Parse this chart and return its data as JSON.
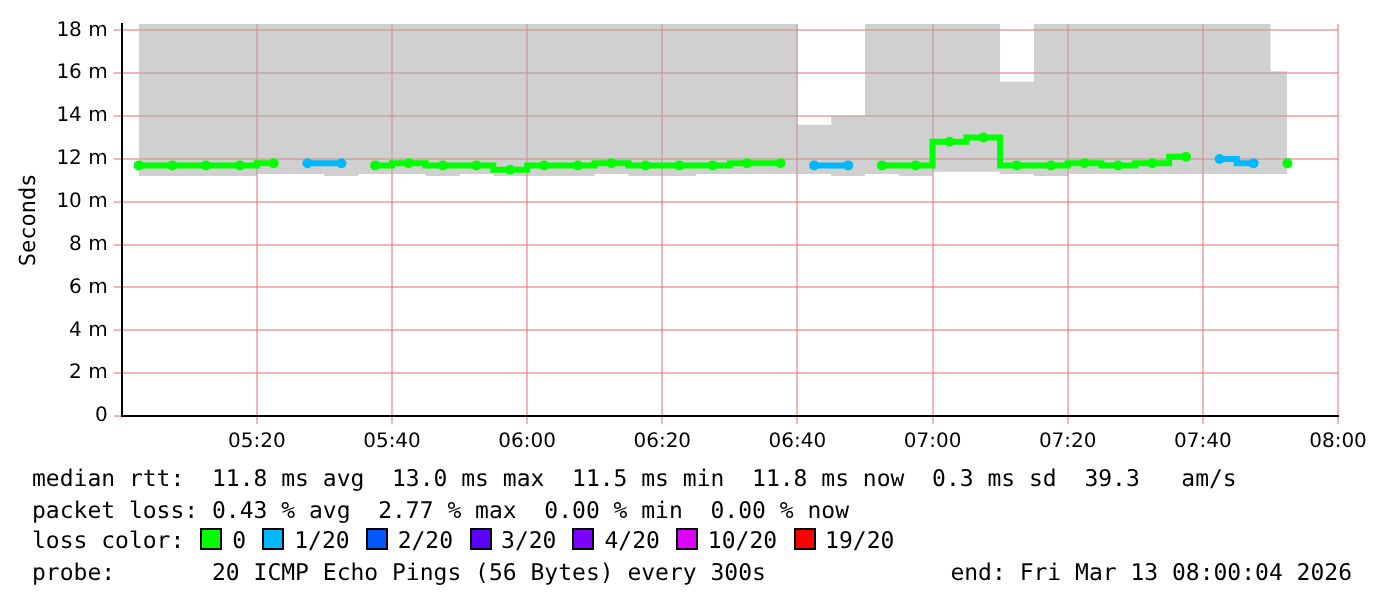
{
  "chart_data": {
    "type": "step",
    "ylabel": "Seconds",
    "legend_title": "loss color:",
    "legend": "bottom",
    "grid": true,
    "x": [
      5.042,
      5.125,
      5.208,
      5.292,
      5.375,
      5.458,
      5.542,
      5.625,
      5.708,
      5.792,
      5.875,
      5.958,
      6.042,
      6.125,
      6.208,
      6.292,
      6.375,
      6.458,
      6.542,
      6.625,
      6.708,
      6.792,
      6.875,
      6.958,
      7.042,
      7.125,
      7.208,
      7.292,
      7.375,
      7.458,
      7.542,
      7.625,
      7.708,
      7.792,
      7.875
    ],
    "xlim": [
      5,
      8
    ],
    "xticks": [
      {
        "value": 5.3333,
        "label": "05:20"
      },
      {
        "value": 5.6667,
        "label": "05:40"
      },
      {
        "value": 6,
        "label": "06:00"
      },
      {
        "value": 6.3333,
        "label": "06:20"
      },
      {
        "value": 6.6667,
        "label": "06:40"
      },
      {
        "value": 7,
        "label": "07:00"
      },
      {
        "value": 7.3333,
        "label": "07:20"
      },
      {
        "value": 7.6667,
        "label": "07:40"
      },
      {
        "value": 8,
        "label": "08:00"
      }
    ],
    "ylim": [
      0,
      18.3
    ],
    "yticks": [
      0,
      {
        "value": 2,
        "label": "2 m"
      },
      {
        "value": 4,
        "label": "4 m"
      },
      {
        "value": 6,
        "label": "6 m"
      },
      {
        "value": 8,
        "label": "8 m"
      },
      {
        "value": 10,
        "label": "10 m"
      },
      {
        "value": 12,
        "label": "12 m"
      },
      {
        "value": 14,
        "label": "14 m"
      },
      {
        "value": 16,
        "label": "16 m"
      },
      {
        "value": 18,
        "label": "18 m"
      }
    ],
    "series": [
      {
        "name": "0",
        "color": "#00ff00",
        "marker": "circle",
        "values": [
          11.7,
          11.7,
          11.7,
          11.7,
          11.8,
          null,
          null,
          11.7,
          11.8,
          11.7,
          11.7,
          11.5,
          11.7,
          11.7,
          11.8,
          11.7,
          11.7,
          11.7,
          11.8,
          11.8,
          null,
          null,
          11.7,
          11.7,
          12.8,
          13.0,
          11.7,
          11.7,
          11.8,
          11.7,
          11.8,
          12.1,
          null,
          null,
          11.8
        ],
        "lower": [
          11.2,
          11.2,
          11.2,
          11.2,
          11.3,
          11.3,
          11.2,
          11.3,
          11.3,
          11.2,
          11.3,
          11.2,
          11.2,
          11.2,
          11.3,
          11.2,
          11.2,
          11.3,
          11.3,
          11.3,
          11.3,
          11.2,
          11.3,
          11.2,
          11.4,
          11.4,
          11.3,
          11.2,
          11.3,
          11.3,
          11.3,
          11.3,
          11.3,
          11.3,
          11.3
        ],
        "upper": [
          18.3,
          18.3,
          18.3,
          18.3,
          18.3,
          18.3,
          18.3,
          18.3,
          18.3,
          18.3,
          18.3,
          18.3,
          18.3,
          18.3,
          18.3,
          18.3,
          18.3,
          18.3,
          18.3,
          18.3,
          13.6,
          14.0,
          18.3,
          18.3,
          18.3,
          18.3,
          15.6,
          18.3,
          18.3,
          18.3,
          18.3,
          18.3,
          18.3,
          18.3,
          16.1
        ]
      },
      {
        "name": "1/20",
        "color": "#00b8ff",
        "marker": "circle",
        "values": [
          null,
          null,
          null,
          null,
          null,
          11.8,
          11.8,
          null,
          null,
          null,
          null,
          null,
          null,
          null,
          null,
          null,
          null,
          null,
          null,
          null,
          11.7,
          11.7,
          null,
          null,
          null,
          null,
          null,
          null,
          null,
          null,
          null,
          null,
          12.0,
          11.8,
          null
        ]
      },
      {
        "name": "2/20",
        "color": "#0059ff",
        "values": [
          null,
          null,
          null,
          null,
          null,
          null,
          null,
          null,
          null,
          null,
          null,
          null,
          null,
          null,
          null,
          null,
          null,
          null,
          null,
          null,
          null,
          null,
          null,
          null,
          null,
          null,
          null,
          null,
          null,
          null,
          null,
          null,
          null,
          null,
          null
        ]
      },
      {
        "name": "3/20",
        "color": "#5e00ff",
        "values": [
          null,
          null,
          null,
          null,
          null,
          null,
          null,
          null,
          null,
          null,
          null,
          null,
          null,
          null,
          null,
          null,
          null,
          null,
          null,
          null,
          null,
          null,
          null,
          null,
          null,
          null,
          null,
          null,
          null,
          null,
          null,
          null,
          null,
          null,
          null
        ]
      },
      {
        "name": "4/20",
        "color": "#7e00ff",
        "values": [
          null,
          null,
          null,
          null,
          null,
          null,
          null,
          null,
          null,
          null,
          null,
          null,
          null,
          null,
          null,
          null,
          null,
          null,
          null,
          null,
          null,
          null,
          null,
          null,
          null,
          null,
          null,
          null,
          null,
          null,
          null,
          null,
          null,
          null,
          null
        ]
      },
      {
        "name": "10/20",
        "color": "#dd00ff",
        "values": [
          null,
          null,
          null,
          null,
          null,
          null,
          null,
          null,
          null,
          null,
          null,
          null,
          null,
          null,
          null,
          null,
          null,
          null,
          null,
          null,
          null,
          null,
          null,
          null,
          null,
          null,
          null,
          null,
          null,
          null,
          null,
          null,
          null,
          null,
          null
        ]
      },
      {
        "name": "19/20",
        "color": "#ff0000",
        "values": [
          null,
          null,
          null,
          null,
          null,
          null,
          null,
          null,
          null,
          null,
          null,
          null,
          null,
          null,
          null,
          null,
          null,
          null,
          null,
          null,
          null,
          null,
          null,
          null,
          null,
          null,
          null,
          null,
          null,
          null,
          null,
          null,
          null,
          null,
          null
        ]
      }
    ],
    "annotations": [
      "median rtt:  11.8 ms avg  13.0 ms max  11.5 ms min  11.8 ms now  0.3 ms sd  39.3   am/s",
      "packet loss: 0.43 % avg  2.77 % max  0.00 % min  0.00 % now",
      "probe:       20 ICMP Echo Pings (56 Bytes) every 300s",
      "end: Fri Mar 13 08:00:04 2026"
    ]
  }
}
